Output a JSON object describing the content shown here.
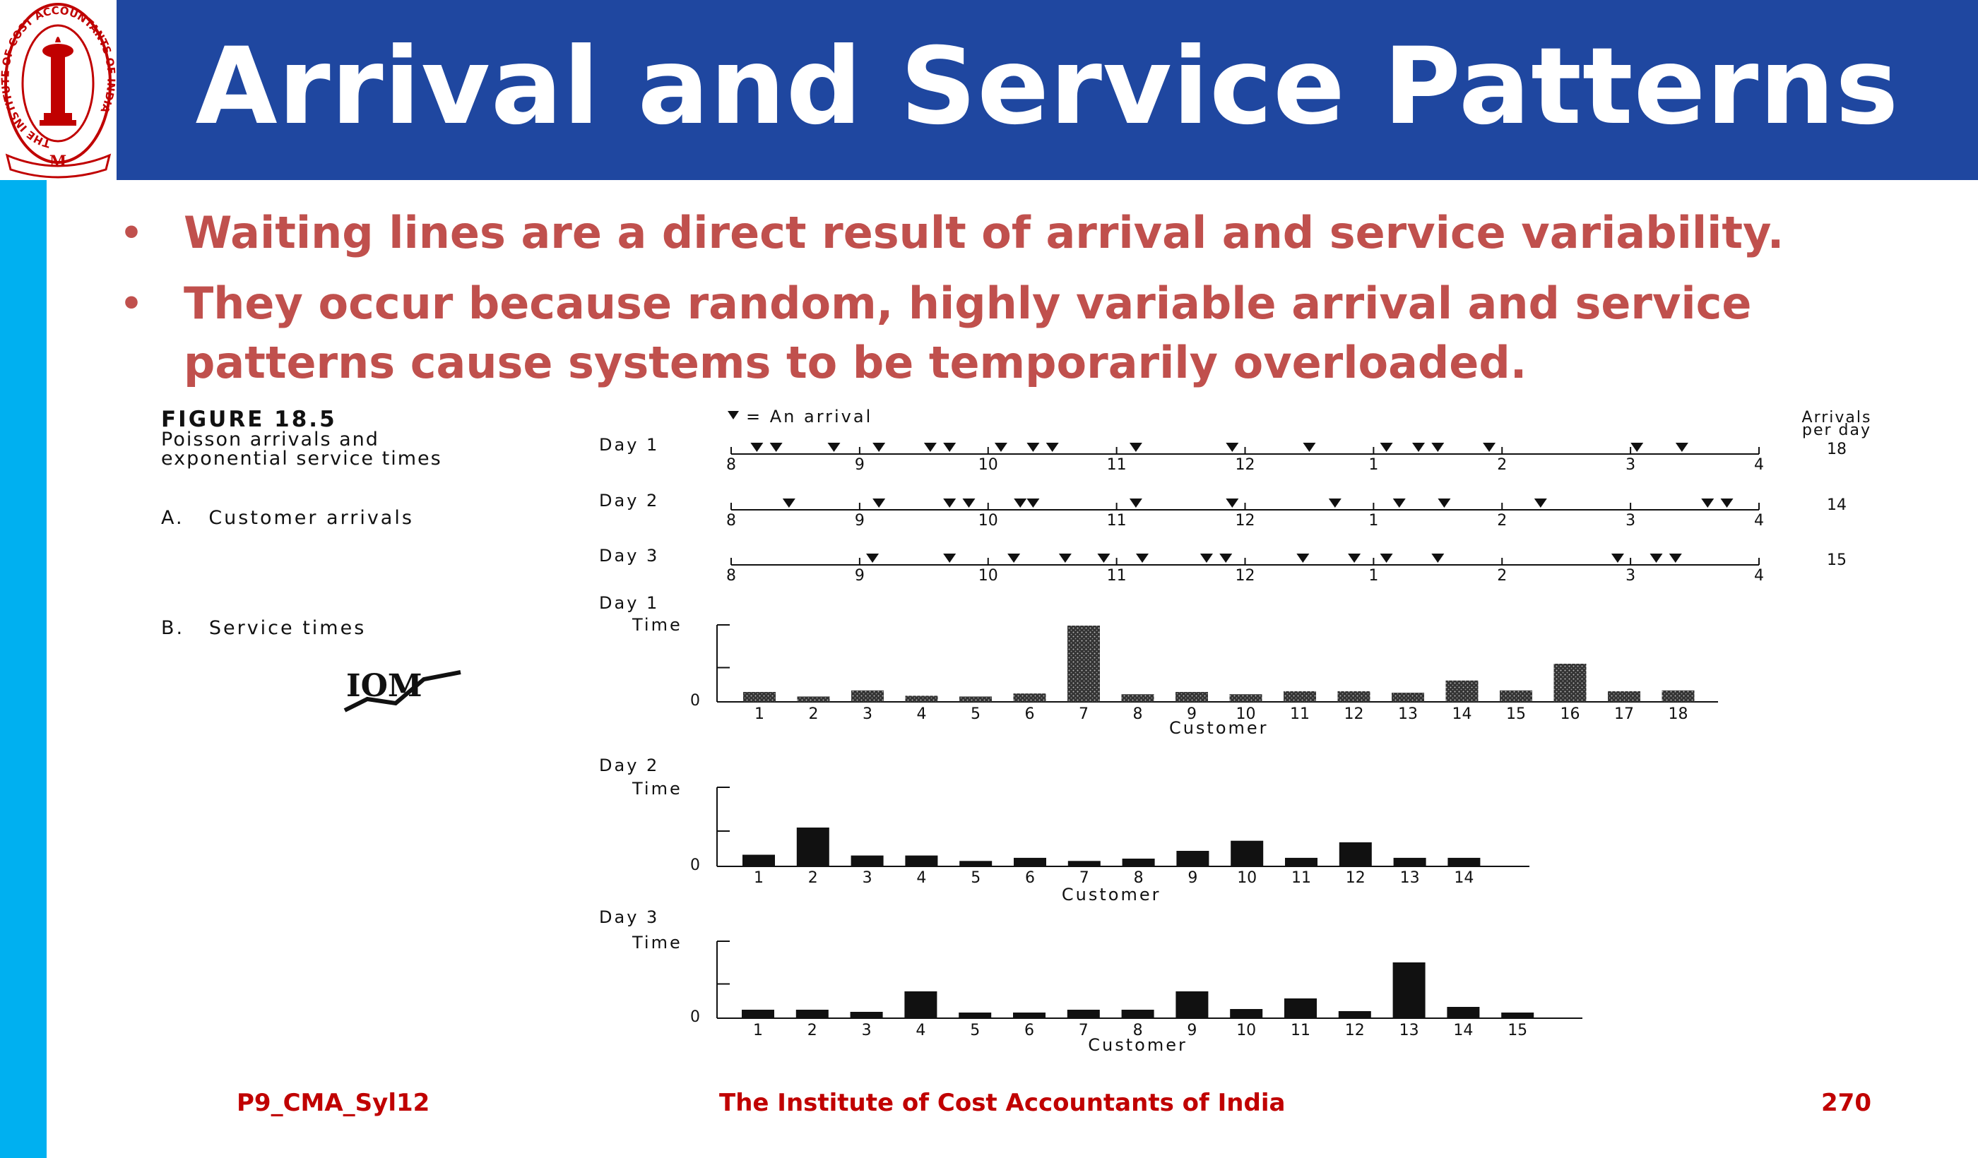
{
  "slide": {
    "title": "Arrival and Service Patterns",
    "bullets": [
      "Waiting lines are a direct result of arrival and service variability.",
      "They occur because random, highly variable arrival and service patterns cause systems to be temporarily overloaded."
    ],
    "bullet_lines": [
      [
        "Waiting lines are a direct result of arrival and service variability."
      ],
      [
        "They occur because random, highly variable arrival and service",
        "patterns cause systems to be temporarily overloaded."
      ]
    ]
  },
  "logo": {
    "name": "institute-seal",
    "ring_text": "THE INSTITUTE OF COST ACCOUNTANTS OF INDIA"
  },
  "figure": {
    "label": "FIGURE 18.5",
    "caption_lines": [
      "Poisson arrivals and",
      "exponential service times"
    ],
    "section_a": "A.   Customer arrivals",
    "section_b": "B.   Service times",
    "legend_text": "= An arrival",
    "arrivals_header_lines": [
      "Arrivals",
      "per day"
    ],
    "publisher_mark": "IOM"
  },
  "chart_data": [
    {
      "type": "scatter",
      "title": "A. Customer arrivals",
      "x_ticks": [
        "8",
        "9",
        "10",
        "11",
        "12",
        "1",
        "2",
        "3",
        "4"
      ],
      "series": [
        {
          "name": "Day 1",
          "arrivals_per_day": "18",
          "x": [
            8.2,
            8.35,
            8.8,
            9.15,
            9.55,
            9.7,
            10.1,
            10.35,
            10.5,
            11.15,
            11.9,
            12.5,
            13.1,
            13.35,
            13.5,
            13.9,
            15.05,
            15.4
          ]
        },
        {
          "name": "Day 2",
          "arrivals_per_day": "14",
          "x": [
            8.45,
            9.15,
            9.7,
            9.85,
            10.25,
            10.35,
            11.15,
            11.9,
            12.7,
            13.2,
            13.55,
            14.3,
            15.6,
            15.75
          ]
        },
        {
          "name": "Day 3",
          "arrivals_per_day": "15",
          "x": [
            9.1,
            9.7,
            10.2,
            10.6,
            10.9,
            11.2,
            11.7,
            11.85,
            12.45,
            12.85,
            13.1,
            13.5,
            14.9,
            15.2,
            15.35
          ]
        }
      ]
    },
    {
      "type": "bar",
      "title": "Day 1",
      "xlabel": "Customer",
      "ylabel": "Time",
      "ytick_zero": "0",
      "ylim": [
        0,
        1
      ],
      "categories": [
        "1",
        "2",
        "3",
        "4",
        "5",
        "6",
        "7",
        "8",
        "9",
        "10",
        "11",
        "12",
        "13",
        "14",
        "15",
        "16",
        "17",
        "18"
      ],
      "values": [
        0.13,
        0.07,
        0.15,
        0.08,
        0.07,
        0.11,
        1.0,
        0.1,
        0.13,
        0.1,
        0.14,
        0.14,
        0.12,
        0.28,
        0.15,
        0.5,
        0.14,
        0.15
      ],
      "texture": "stippled"
    },
    {
      "type": "bar",
      "title": "Day 2",
      "xlabel": "Customer",
      "ylabel": "Time",
      "ytick_zero": "0",
      "ylim": [
        0,
        1
      ],
      "categories": [
        "1",
        "2",
        "3",
        "4",
        "5",
        "6",
        "7",
        "8",
        "9",
        "10",
        "11",
        "12",
        "13",
        "14"
      ],
      "values": [
        0.15,
        0.5,
        0.14,
        0.14,
        0.07,
        0.11,
        0.07,
        0.1,
        0.2,
        0.33,
        0.11,
        0.31,
        0.11,
        0.11
      ],
      "texture": "solid"
    },
    {
      "type": "bar",
      "title": "Day 3",
      "xlabel": "Customer",
      "ylabel": "Time",
      "ytick_zero": "0",
      "ylim": [
        0,
        1
      ],
      "categories": [
        "1",
        "2",
        "3",
        "4",
        "5",
        "6",
        "7",
        "8",
        "9",
        "10",
        "11",
        "12",
        "13",
        "14",
        "15"
      ],
      "values": [
        0.12,
        0.12,
        0.09,
        0.38,
        0.08,
        0.08,
        0.12,
        0.12,
        0.38,
        0.13,
        0.28,
        0.1,
        0.79,
        0.16,
        0.08
      ],
      "texture": "solid"
    }
  ],
  "footer": {
    "left": "P9_CMA_Syl12",
    "center": "The Institute of Cost Accountants of India",
    "page_number": "270"
  },
  "colors": {
    "header_blue": "#1f47a0",
    "sidebar_cyan": "#00b0f0",
    "bullet_red": "#c0504d",
    "footer_red": "#c00000",
    "seal_red": "#c00000"
  }
}
